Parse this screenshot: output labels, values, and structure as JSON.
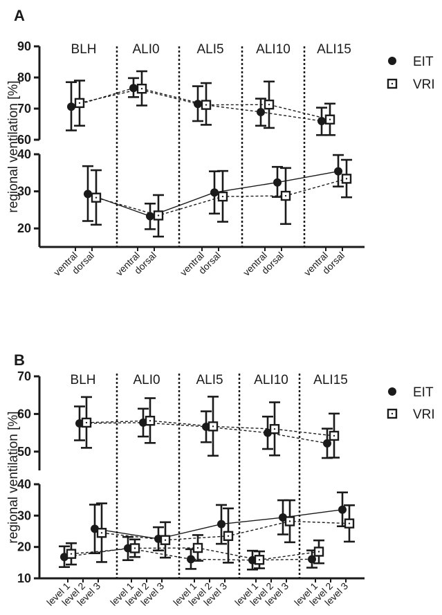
{
  "chart_data": [
    {
      "type": "scatter",
      "panel": "A",
      "ylabel": "regional ventilation [%]",
      "groups": [
        "BLH",
        "ALI0",
        "ALI5",
        "ALI10",
        "ALI15"
      ],
      "categories": [
        "ventral",
        "dorsal"
      ],
      "legend": {
        "placement": "right"
      },
      "upper_axis": {
        "ylim": [
          60,
          90
        ],
        "ticks": [
          60,
          70,
          80,
          90
        ]
      },
      "lower_axis": {
        "ylim": [
          15,
          40
        ],
        "ticks": [
          20,
          30,
          40
        ]
      },
      "series": [
        {
          "name": "EIT",
          "marker": "filled-circle",
          "points": [
            {
              "group": "BLH",
              "category": "ventral",
              "value": 70.6,
              "low": 63.0,
              "high": 78.5
            },
            {
              "group": "BLH",
              "category": "dorsal",
              "value": 29.3,
              "low": 22.0,
              "high": 36.8
            },
            {
              "group": "ALI0",
              "category": "ventral",
              "value": 76.6,
              "low": 73.7,
              "high": 79.8
            },
            {
              "group": "ALI0",
              "category": "dorsal",
              "value": 23.3,
              "low": 19.8,
              "high": 26.7
            },
            {
              "group": "ALI5",
              "category": "ventral",
              "value": 71.5,
              "low": 66.0,
              "high": 77.2
            },
            {
              "group": "ALI5",
              "category": "dorsal",
              "value": 29.7,
              "low": 24.0,
              "high": 35.4
            },
            {
              "group": "ALI10",
              "category": "ventral",
              "value": 68.9,
              "low": 64.5,
              "high": 73.2
            },
            {
              "group": "ALI10",
              "category": "dorsal",
              "value": 32.4,
              "low": 28.5,
              "high": 36.6
            },
            {
              "group": "ALI15",
              "category": "ventral",
              "value": 66.0,
              "low": 61.5,
              "high": 70.3
            },
            {
              "group": "ALI15",
              "category": "dorsal",
              "value": 35.4,
              "low": 31.3,
              "high": 39.8
            }
          ]
        },
        {
          "name": "VRI",
          "marker": "open-square",
          "points": [
            {
              "group": "BLH",
              "category": "ventral",
              "value": 71.8,
              "low": 64.5,
              "high": 79.0
            },
            {
              "group": "BLH",
              "category": "dorsal",
              "value": 28.3,
              "low": 21.0,
              "high": 35.7
            },
            {
              "group": "ALI0",
              "category": "ventral",
              "value": 76.4,
              "low": 71.0,
              "high": 82.0
            },
            {
              "group": "ALI0",
              "category": "dorsal",
              "value": 23.5,
              "low": 17.8,
              "high": 29.0
            },
            {
              "group": "ALI5",
              "category": "ventral",
              "value": 71.2,
              "low": 64.8,
              "high": 78.2
            },
            {
              "group": "ALI5",
              "category": "dorsal",
              "value": 28.6,
              "low": 21.8,
              "high": 35.5
            },
            {
              "group": "ALI10",
              "category": "ventral",
              "value": 71.3,
              "low": 63.8,
              "high": 78.7
            },
            {
              "group": "ALI10",
              "category": "dorsal",
              "value": 28.8,
              "low": 21.2,
              "high": 36.3
            },
            {
              "group": "ALI15",
              "category": "ventral",
              "value": 66.5,
              "low": 61.5,
              "high": 71.6
            },
            {
              "group": "ALI15",
              "category": "dorsal",
              "value": 33.4,
              "low": 28.4,
              "high": 38.5
            }
          ]
        }
      ]
    },
    {
      "type": "scatter",
      "panel": "B",
      "ylabel": "regional ventilation [%]",
      "groups": [
        "BLH",
        "ALI0",
        "ALI5",
        "ALI10",
        "ALI15"
      ],
      "categories": [
        "level 1",
        "level 2",
        "level 3"
      ],
      "legend": {
        "placement": "right"
      },
      "upper_axis": {
        "ylim": [
          45,
          70
        ],
        "ticks": [
          50,
          60,
          70
        ]
      },
      "lower_axis": {
        "ylim": [
          10,
          40
        ],
        "ticks": [
          10,
          20,
          30,
          40
        ]
      },
      "series": [
        {
          "name": "EIT",
          "marker": "filled-circle",
          "points": [
            {
              "group": "BLH",
              "category": "level 1",
              "value": 16.8,
              "low": 13.6,
              "high": 20.2
            },
            {
              "group": "BLH",
              "category": "level 2",
              "value": 57.5,
              "low": 53.0,
              "high": 62.0
            },
            {
              "group": "BLH",
              "category": "level 3",
              "value": 25.8,
              "low": 18.0,
              "high": 33.5
            },
            {
              "group": "ALI0",
              "category": "level 1",
              "value": 19.6,
              "low": 15.8,
              "high": 23.2
            },
            {
              "group": "ALI0",
              "category": "level 2",
              "value": 57.7,
              "low": 54.0,
              "high": 61.4
            },
            {
              "group": "ALI0",
              "category": "level 3",
              "value": 22.6,
              "low": 18.9,
              "high": 26.3
            },
            {
              "group": "ALI5",
              "category": "level 1",
              "value": 16.1,
              "low": 13.0,
              "high": 19.3
            },
            {
              "group": "ALI5",
              "category": "level 2",
              "value": 56.6,
              "low": 52.5,
              "high": 60.7
            },
            {
              "group": "ALI5",
              "category": "level 3",
              "value": 27.3,
              "low": 21.0,
              "high": 33.4
            },
            {
              "group": "ALI10",
              "category": "level 1",
              "value": 15.8,
              "low": 12.8,
              "high": 18.8
            },
            {
              "group": "ALI10",
              "category": "level 2",
              "value": 55.0,
              "low": 50.7,
              "high": 59.3
            },
            {
              "group": "ALI10",
              "category": "level 3",
              "value": 29.4,
              "low": 24.0,
              "high": 34.9
            },
            {
              "group": "ALI15",
              "category": "level 1",
              "value": 16.1,
              "low": 13.4,
              "high": 18.9
            },
            {
              "group": "ALI15",
              "category": "level 2",
              "value": 52.2,
              "low": 48.3,
              "high": 56.1
            },
            {
              "group": "ALI15",
              "category": "level 3",
              "value": 31.9,
              "low": 26.6,
              "high": 37.4
            }
          ]
        },
        {
          "name": "VRI",
          "marker": "open-square",
          "points": [
            {
              "group": "BLH",
              "category": "level 1",
              "value": 17.8,
              "low": 14.4,
              "high": 21.2
            },
            {
              "group": "BLH",
              "category": "level 2",
              "value": 57.7,
              "low": 51.0,
              "high": 64.5
            },
            {
              "group": "BLH",
              "category": "level 3",
              "value": 24.5,
              "low": 15.2,
              "high": 33.9
            },
            {
              "group": "ALI0",
              "category": "level 1",
              "value": 19.6,
              "low": 16.8,
              "high": 22.4
            },
            {
              "group": "ALI0",
              "category": "level 2",
              "value": 58.2,
              "low": 52.3,
              "high": 64.2
            },
            {
              "group": "ALI0",
              "category": "level 3",
              "value": 22.2,
              "low": 16.6,
              "high": 27.9
            },
            {
              "group": "ALI5",
              "category": "level 1",
              "value": 19.7,
              "low": 15.6,
              "high": 23.8
            },
            {
              "group": "ALI5",
              "category": "level 2",
              "value": 56.7,
              "low": 48.9,
              "high": 64.6
            },
            {
              "group": "ALI5",
              "category": "level 3",
              "value": 23.5,
              "low": 15.0,
              "high": 32.3
            },
            {
              "group": "ALI10",
              "category": "level 1",
              "value": 15.9,
              "low": 13.2,
              "high": 18.6
            },
            {
              "group": "ALI10",
              "category": "level 2",
              "value": 56.0,
              "low": 49.0,
              "high": 63.1
            },
            {
              "group": "ALI10",
              "category": "level 3",
              "value": 28.2,
              "low": 21.5,
              "high": 34.9
            },
            {
              "group": "ALI15",
              "category": "level 1",
              "value": 18.5,
              "low": 14.8,
              "high": 22.1
            },
            {
              "group": "ALI15",
              "category": "level 2",
              "value": 54.2,
              "low": 48.4,
              "high": 60.1
            },
            {
              "group": "ALI15",
              "category": "level 3",
              "value": 27.5,
              "low": 21.7,
              "high": 33.3
            }
          ]
        }
      ]
    }
  ]
}
